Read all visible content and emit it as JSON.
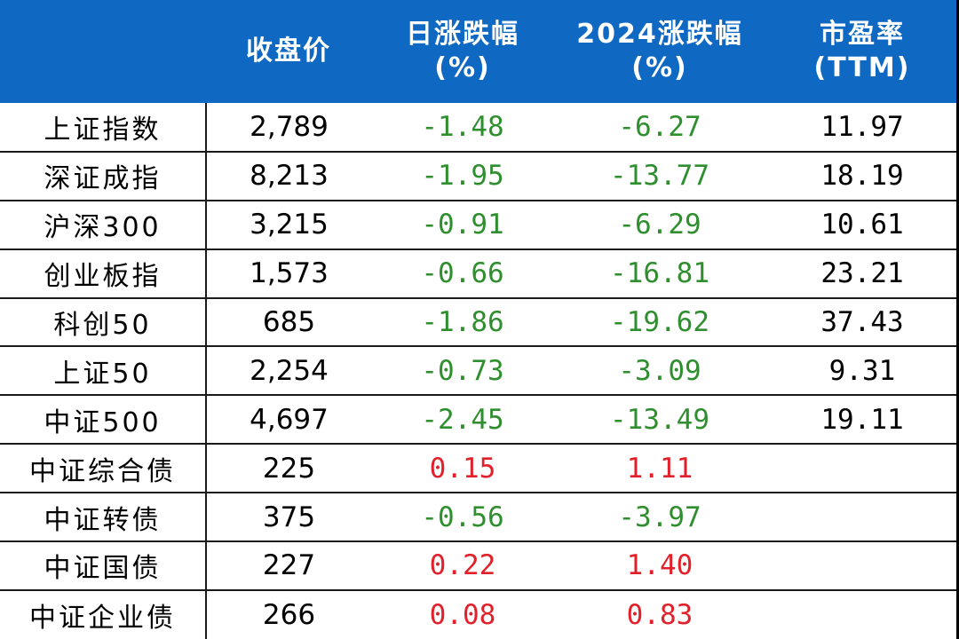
{
  "colors": {
    "header_bg": "#0f69c2",
    "header_text": "#ffffff",
    "negative": "#2f8f2f",
    "positive": "#e0202a"
  },
  "header": {
    "col0": "",
    "close": "收盘价",
    "daily_line1": "日涨跌幅",
    "daily_line2": "(%)",
    "ytd_line1": "2024涨跌幅",
    "ytd_line2": "(%)",
    "pe_line1": "市盈率",
    "pe_line2": "(TTM)"
  },
  "rows": [
    {
      "name": "上证指数",
      "close": "2,789",
      "daily": "-1.48",
      "ytd": "-6.27",
      "pe": "11.97"
    },
    {
      "name": "深证成指",
      "close": "8,213",
      "daily": "-1.95",
      "ytd": "-13.77",
      "pe": "18.19"
    },
    {
      "name": "沪深300",
      "close": "3,215",
      "daily": "-0.91",
      "ytd": "-6.29",
      "pe": "10.61"
    },
    {
      "name": "创业板指",
      "close": "1,573",
      "daily": "-0.66",
      "ytd": "-16.81",
      "pe": "23.21"
    },
    {
      "name": "科创50",
      "close": "685",
      "daily": "-1.86",
      "ytd": "-19.62",
      "pe": "37.43"
    },
    {
      "name": "上证50",
      "close": "2,254",
      "daily": "-0.73",
      "ytd": "-3.09",
      "pe": "9.31"
    },
    {
      "name": "中证500",
      "close": "4,697",
      "daily": "-2.45",
      "ytd": "-13.49",
      "pe": "19.11"
    },
    {
      "name": "中证综合债",
      "close": "225",
      "daily": "0.15",
      "ytd": "1.11",
      "pe": ""
    },
    {
      "name": "中证转债",
      "close": "375",
      "daily": "-0.56",
      "ytd": "-3.97",
      "pe": ""
    },
    {
      "name": "中证国债",
      "close": "227",
      "daily": "0.22",
      "ytd": "1.40",
      "pe": ""
    },
    {
      "name": "中证企业债",
      "close": "266",
      "daily": "0.08",
      "ytd": "0.83",
      "pe": ""
    }
  ]
}
